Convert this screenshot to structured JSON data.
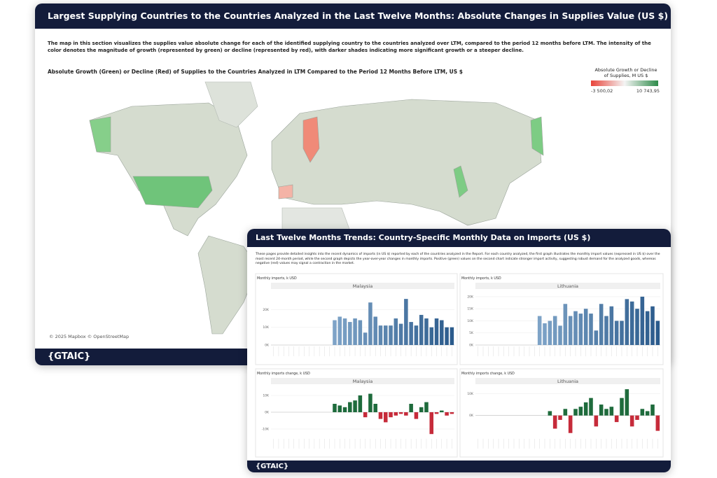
{
  "back_panel": {
    "title": "Largest Supplying Countries to the Countries Analyzed in the Last Twelve Months: Absolute Changes in Supplies Value (US $)",
    "description": "The map in this section visualizes the supplies value absolute change for each of the identified supplying country to the countries analyzed over LTM, compared to the period 12 months before LTM. The intensity of the color denotes the magnitude of growth (represented by green) or decline (represented by red), with darker shades indicating more significant growth or a steeper decline.",
    "map_title": "Absolute Growth (Green) or Decline (Red) of Supplies to the Countries Analyzed in LTM Compared to the Period 12 Months Before LTM, US $",
    "legend": {
      "title": "Absolute Growth or Decline of Supplies, M US $",
      "min_label": "-3 500,02",
      "max_label": "10 743,95",
      "colors": [
        "#e8443a",
        "#2e8b4a"
      ]
    },
    "attribution": "© 2025 Mapbox © OpenStreetMap",
    "logo": "{GTAIC}"
  },
  "front_panel": {
    "title": "Last Twelve Months Trends: Country-Specific Monthly Data on Imports (US $)",
    "description": "These pages provide detailed insights into the recent dynamics of imports (in US $) reported by each of the countries analyzed in the Report. For each country analyzed, the first graph illustrates the monthly import values (expressed in US $) over the most recent 24-month period, while the second graph depicts the year-over-year changes in monthly imports. Positive (green) values on the second chart indicate stronger import activity, suggesting robust demand for the analyzed goods, whereas negative (red) values may signal a contraction in the market.",
    "charts": [
      {
        "type": "bar",
        "label": "Monthly imports, k USD",
        "title": "Malaysia",
        "color_range": [
          "#a9c9e6",
          "#2b5b8c"
        ],
        "ylim": [
          0,
          30000
        ],
        "yticks": [
          {
            "value": 0,
            "label": "0K"
          },
          {
            "value": 10000,
            "label": "10K"
          },
          {
            "value": 20000,
            "label": "20K"
          }
        ],
        "values": [
          null,
          null,
          null,
          null,
          null,
          null,
          null,
          null,
          null,
          null,
          null,
          null,
          14000,
          16000,
          15000,
          13000,
          15000,
          14000,
          7000,
          24000,
          16000,
          11000,
          11000,
          11000,
          15000,
          12000,
          26000,
          13000,
          11000,
          17000,
          15000,
          10000,
          15000,
          14000,
          10000,
          10000
        ]
      },
      {
        "type": "bar",
        "label": "Monthly imports, k USD",
        "title": "Lithuania",
        "color_range": [
          "#a9c9e6",
          "#2b5b8c"
        ],
        "ylim": [
          0,
          22000
        ],
        "yticks": [
          {
            "value": 0,
            "label": "0K"
          },
          {
            "value": 5000,
            "label": "5K"
          },
          {
            "value": 10000,
            "label": "10K"
          },
          {
            "value": 15000,
            "label": "15K"
          },
          {
            "value": 20000,
            "label": "20K"
          }
        ],
        "values": [
          null,
          null,
          null,
          null,
          null,
          null,
          null,
          null,
          null,
          null,
          null,
          null,
          12000,
          9000,
          10000,
          12000,
          8000,
          17000,
          12000,
          14000,
          13000,
          15000,
          13000,
          6000,
          17000,
          12000,
          16000,
          10000,
          10000,
          19000,
          18000,
          15000,
          20000,
          14000,
          16000,
          10000
        ]
      },
      {
        "type": "bar",
        "label": "Monthly imports change, k USD",
        "title": "Malaysia",
        "colors": {
          "positive": "#1e6b3c",
          "negative": "#c62b3a"
        },
        "ylim": [
          -15000,
          15000
        ],
        "yticks": [
          {
            "value": -10000,
            "label": "-10K"
          },
          {
            "value": 0,
            "label": "0K"
          },
          {
            "value": 10000,
            "label": "10K"
          }
        ],
        "values": [
          null,
          null,
          null,
          null,
          null,
          null,
          null,
          null,
          null,
          null,
          null,
          null,
          5000,
          4000,
          3000,
          6000,
          7000,
          10000,
          -3000,
          11000,
          5000,
          -4000,
          -6000,
          -3000,
          -2000,
          -1000,
          -2000,
          5000,
          -4000,
          3000,
          6000,
          -13000,
          -1000,
          1000,
          -2000,
          -1000
        ]
      },
      {
        "type": "bar",
        "label": "Monthly imports change, k USD",
        "title": "Lithuania",
        "colors": {
          "positive": "#1e6b3c",
          "negative": "#c62b3a"
        },
        "ylim": [
          -10000,
          13000
        ],
        "yticks": [
          {
            "value": 0,
            "label": "0K"
          },
          {
            "value": 10000,
            "label": "10K"
          }
        ],
        "values": [
          null,
          null,
          null,
          null,
          null,
          null,
          null,
          null,
          null,
          null,
          null,
          null,
          null,
          null,
          2000,
          -6000,
          -2000,
          3000,
          -8000,
          3000,
          4000,
          6000,
          8000,
          -5000,
          5000,
          3000,
          4000,
          -3000,
          8000,
          12000,
          -5000,
          -2000,
          3000,
          2000,
          5000,
          -7000
        ]
      }
    ],
    "logo": "{GTAIC}"
  }
}
